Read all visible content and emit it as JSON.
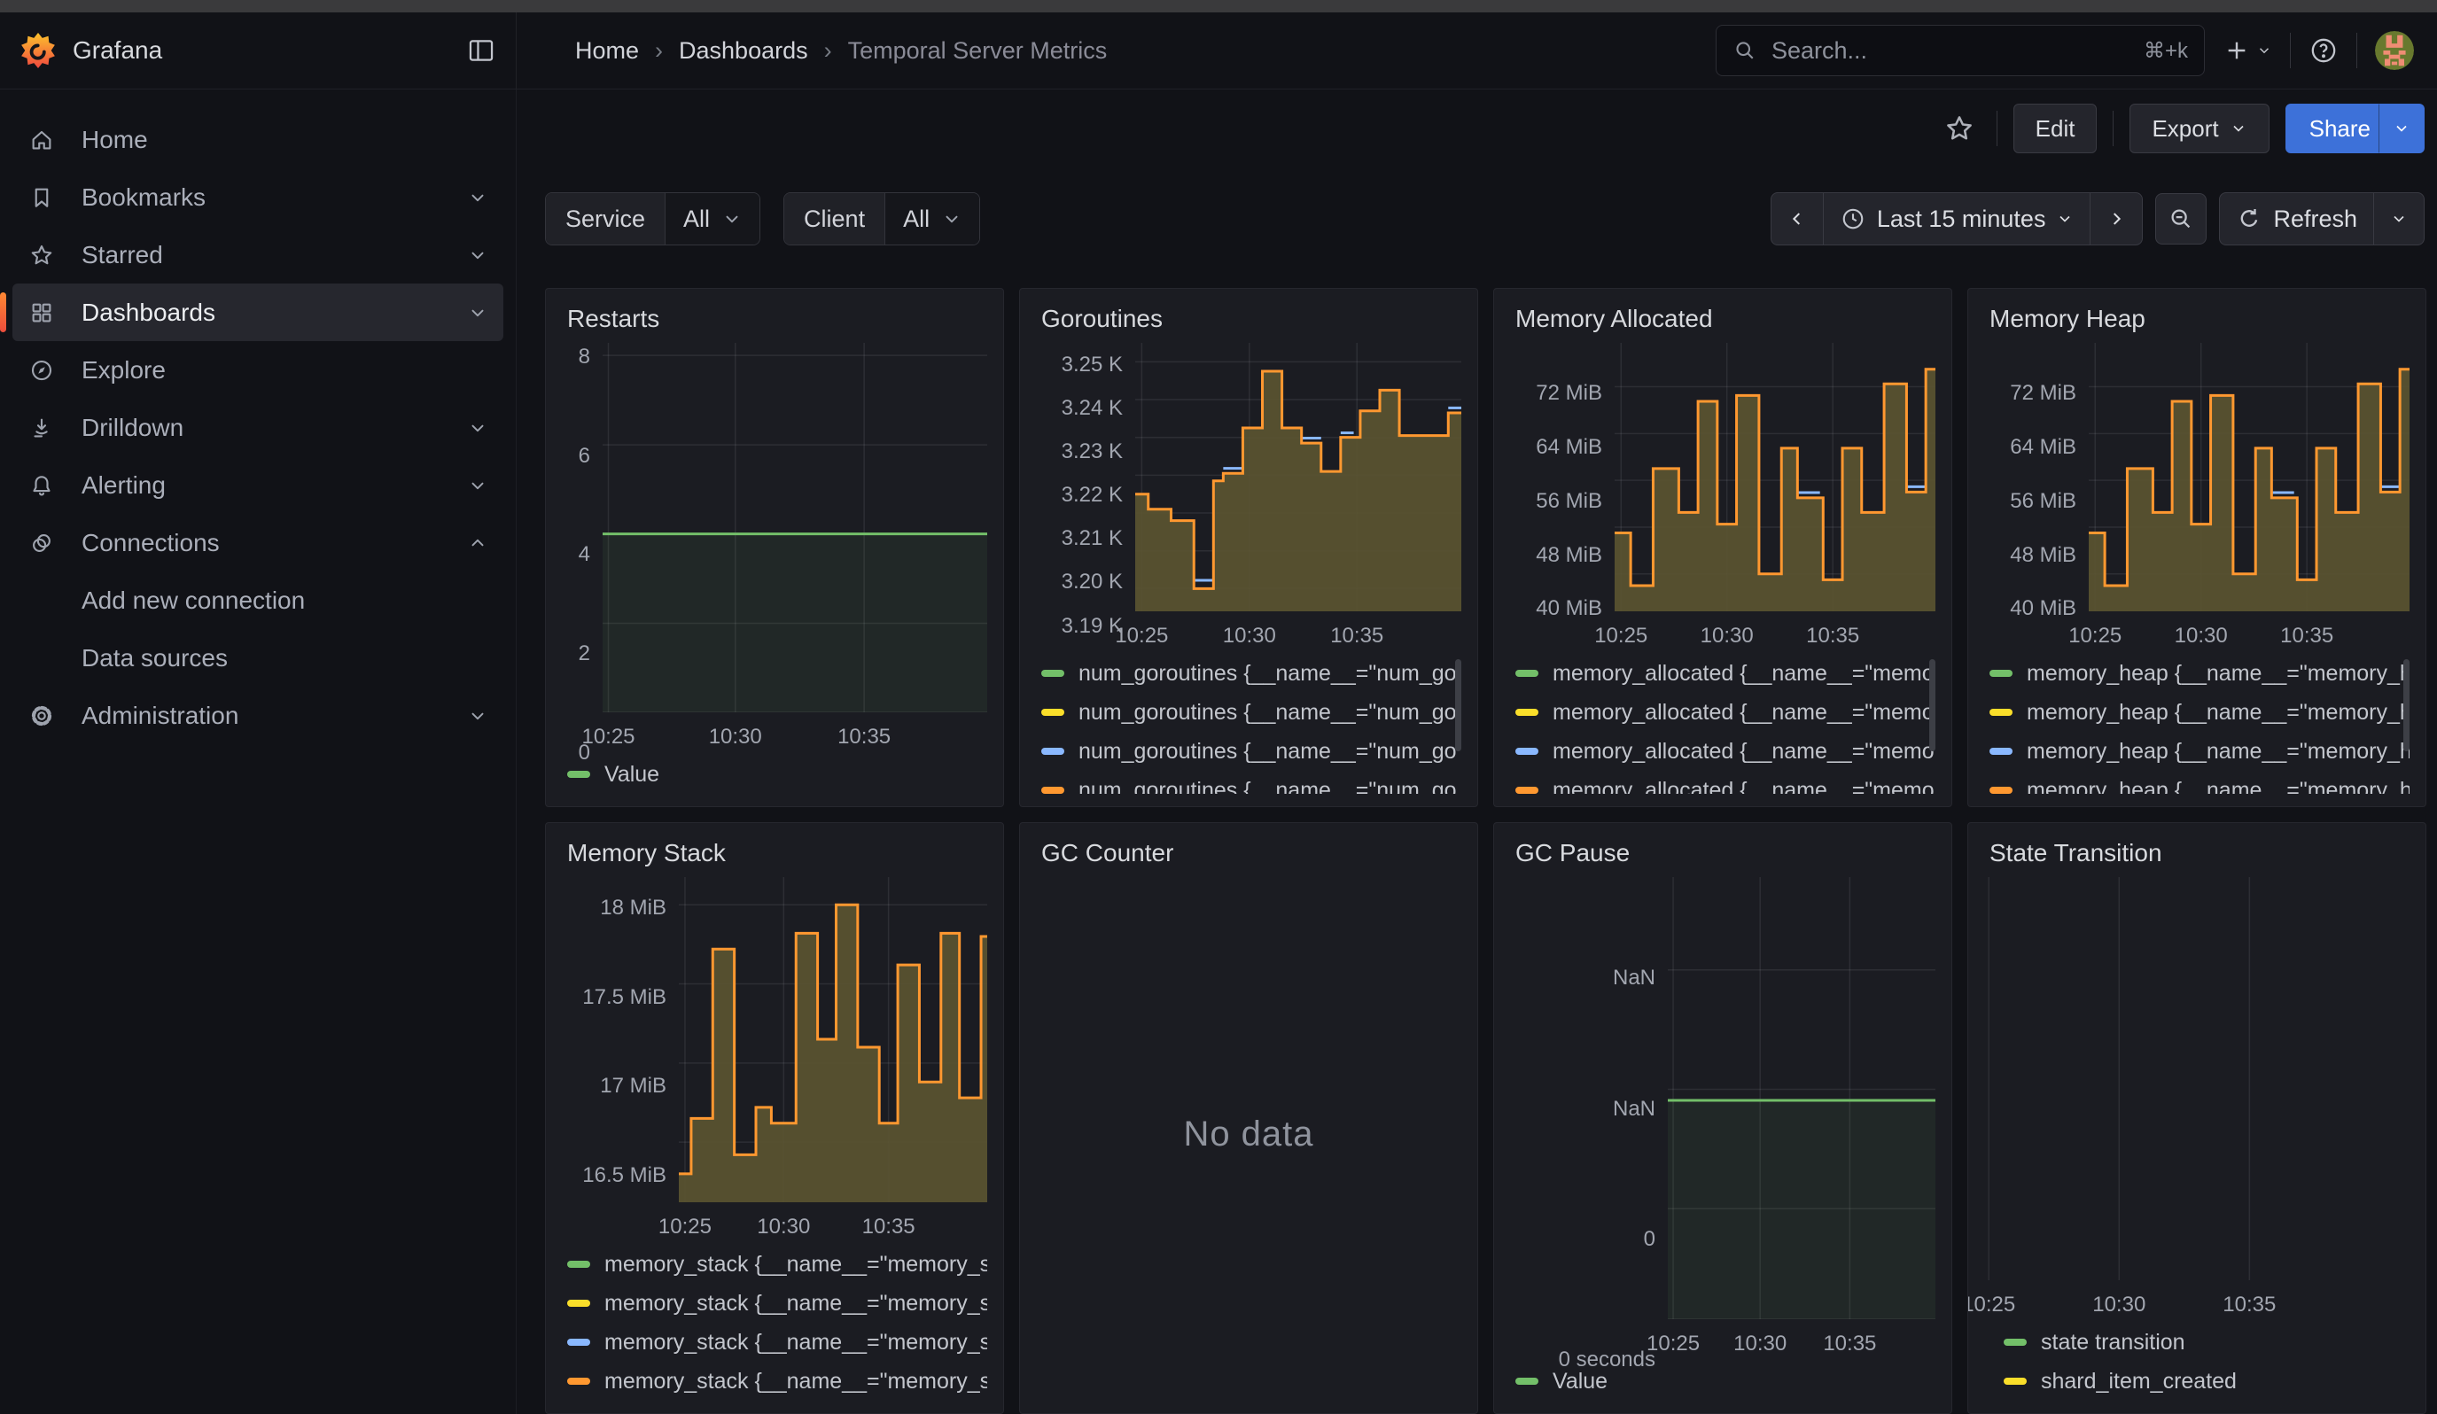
{
  "header": {
    "brand": "Grafana",
    "breadcrumb": [
      "Home",
      "Dashboards",
      "Temporal Server Metrics"
    ],
    "search": {
      "placeholder": "Search...",
      "shortcut": "⌘+k"
    }
  },
  "actions": {
    "edit": "Edit",
    "export": "Export",
    "share": "Share"
  },
  "sidebar": {
    "items": [
      {
        "label": "Home",
        "icon": "home",
        "chevron": null,
        "active": false,
        "indent": false
      },
      {
        "label": "Bookmarks",
        "icon": "bookmark",
        "chevron": "down",
        "active": false,
        "indent": false
      },
      {
        "label": "Starred",
        "icon": "star",
        "chevron": "down",
        "active": false,
        "indent": false
      },
      {
        "label": "Dashboards",
        "icon": "apps",
        "chevron": "down",
        "active": true,
        "indent": false
      },
      {
        "label": "Explore",
        "icon": "compass",
        "chevron": null,
        "active": false,
        "indent": false
      },
      {
        "label": "Drilldown",
        "icon": "drilldown",
        "chevron": "down",
        "active": false,
        "indent": false
      },
      {
        "label": "Alerting",
        "icon": "bell",
        "chevron": "down",
        "active": false,
        "indent": false
      },
      {
        "label": "Connections",
        "icon": "link",
        "chevron": "up",
        "active": false,
        "indent": false
      },
      {
        "label": "Add new connection",
        "icon": null,
        "chevron": null,
        "active": false,
        "indent": true
      },
      {
        "label": "Data sources",
        "icon": null,
        "chevron": null,
        "active": false,
        "indent": true
      },
      {
        "label": "Administration",
        "icon": "gear",
        "chevron": "down",
        "active": false,
        "indent": false
      }
    ]
  },
  "filters": [
    {
      "label": "Service",
      "value": "All"
    },
    {
      "label": "Client",
      "value": "All"
    }
  ],
  "timebar": {
    "range_label": "Last 15 minutes",
    "refresh_label": "Refresh"
  },
  "colors": {
    "green": "#73bf69",
    "yellow": "#fade2a",
    "blue": "#8ab8ff",
    "orange": "#ff9830",
    "area_fill": "#5a5431",
    "green_fill": "rgba(115,191,105,0.08)",
    "accent_blue": "#3d71d9",
    "brand_orange": "#ff8833"
  },
  "chart_data": [
    {
      "key": "restarts",
      "title": "Restarts",
      "type": "flat",
      "y_tick_labels": [
        "8",
        "6",
        "4",
        "2",
        "0"
      ],
      "y_tick_fracs": [
        3.4,
        27.6,
        51.7,
        75.9,
        100
      ],
      "x_ticks": [
        "10:25",
        "10:30",
        "10:35"
      ],
      "x_tick_fracs": [
        1.5,
        34.5,
        68
      ],
      "line_frac": 51.7,
      "value": 4,
      "ylim": [
        0,
        8.25
      ],
      "line_color": "#73bf69",
      "fill_color": "rgba(115,191,105,0.08)",
      "legend": [
        {
          "color": "#73bf69",
          "label": "Value"
        }
      ],
      "legend_clipped": false,
      "scrollbar": false,
      "yw": 46
    },
    {
      "key": "goroutines",
      "title": "Goroutines",
      "type": "steps",
      "y_tick_values": [
        3.25,
        3.24,
        3.23,
        3.22,
        3.21,
        3.2,
        3.19
      ],
      "y_tick_labels": [
        "3.25 K",
        "3.24 K",
        "3.23 K",
        "3.22 K",
        "3.21 K",
        "3.20 K",
        "3.19 K"
      ],
      "ylim": [
        3.184,
        3.255
      ],
      "unit": "K goroutines",
      "x_ticks": [
        "10:25",
        "10:30",
        "10:35"
      ],
      "x_tick_fracs": [
        2,
        35,
        68
      ],
      "steps": [
        [
          0,
          3.215
        ],
        [
          4,
          3.211
        ],
        [
          11,
          3.208
        ],
        [
          18,
          3.19
        ],
        [
          24,
          3.2185
        ],
        [
          27,
          3.2205
        ],
        [
          33,
          3.2325
        ],
        [
          39,
          3.2475
        ],
        [
          45,
          3.2325
        ],
        [
          51,
          3.2285
        ],
        [
          57,
          3.221
        ],
        [
          63,
          3.23
        ],
        [
          69,
          3.237
        ],
        [
          75,
          3.2425
        ],
        [
          81,
          3.2305
        ],
        [
          96,
          3.2365
        ]
      ],
      "blue_segments": [
        [
          18,
          24,
          3.1922
        ],
        [
          27,
          33,
          3.2218
        ],
        [
          51,
          57,
          3.2298
        ],
        [
          63,
          67,
          3.2312
        ],
        [
          96,
          100,
          3.2378
        ]
      ],
      "legend": [
        {
          "color": "#73bf69",
          "label": "num_goroutines {__name__=\"num_go"
        },
        {
          "color": "#fade2a",
          "label": "num_goroutines {__name__=\"num_go"
        },
        {
          "color": "#8ab8ff",
          "label": "num_goroutines {__name__=\"num_go"
        },
        {
          "color": "#ff9830",
          "label": "num_goroutines {__name__=\"num_go"
        }
      ],
      "legend_clipped": true,
      "scrollbar": true,
      "yw": 112
    },
    {
      "key": "memory_allocated",
      "title": "Memory Allocated",
      "type": "steps",
      "y_tick_values": [
        72,
        64,
        56,
        48,
        40
      ],
      "y_tick_labels": [
        "72 MiB",
        "64 MiB",
        "56 MiB",
        "48 MiB",
        "40 MiB"
      ],
      "ylim": [
        33.6,
        79.5
      ],
      "unit": "MiB",
      "x_ticks": [
        "10:25",
        "10:30",
        "10:35"
      ],
      "x_tick_fracs": [
        2,
        35,
        68
      ],
      "steps": [
        [
          0,
          47
        ],
        [
          5,
          38
        ],
        [
          12,
          58
        ],
        [
          20,
          50.5
        ],
        [
          26,
          69.5
        ],
        [
          32,
          48.5
        ],
        [
          38,
          70.5
        ],
        [
          45,
          40
        ],
        [
          52,
          61.5
        ],
        [
          57,
          53
        ],
        [
          65,
          39
        ],
        [
          71,
          61.5
        ],
        [
          77,
          50.5
        ],
        [
          84,
          72.5
        ],
        [
          91,
          54
        ],
        [
          97,
          75
        ]
      ],
      "blue_segments": [
        [
          57,
          64,
          53.9
        ],
        [
          91,
          97,
          54.9
        ]
      ],
      "legend": [
        {
          "color": "#73bf69",
          "label": "memory_allocated {__name__=\"memo"
        },
        {
          "color": "#fade2a",
          "label": "memory_allocated {__name__=\"memo"
        },
        {
          "color": "#8ab8ff",
          "label": "memory_allocated {__name__=\"memo"
        },
        {
          "color": "#ff9830",
          "label": "memory_allocated {__name__=\"memo"
        }
      ],
      "legend_clipped": true,
      "scrollbar": true,
      "yw": 118
    },
    {
      "key": "memory_heap",
      "title": "Memory Heap",
      "type": "steps",
      "y_tick_values": [
        72,
        64,
        56,
        48,
        40
      ],
      "y_tick_labels": [
        "72 MiB",
        "64 MiB",
        "56 MiB",
        "48 MiB",
        "40 MiB"
      ],
      "ylim": [
        33.6,
        79.5
      ],
      "unit": "MiB",
      "x_ticks": [
        "10:25",
        "10:30",
        "10:35"
      ],
      "x_tick_fracs": [
        2,
        35,
        68
      ],
      "steps": [
        [
          0,
          47
        ],
        [
          5,
          38
        ],
        [
          12,
          58
        ],
        [
          20,
          50.5
        ],
        [
          26,
          69.5
        ],
        [
          32,
          48.5
        ],
        [
          38,
          70.5
        ],
        [
          45,
          40
        ],
        [
          52,
          61.5
        ],
        [
          57,
          53
        ],
        [
          65,
          39
        ],
        [
          71,
          61.5
        ],
        [
          77,
          50.5
        ],
        [
          84,
          72.5
        ],
        [
          91,
          54
        ],
        [
          97,
          75
        ]
      ],
      "blue_segments": [
        [
          57,
          64,
          53.9
        ],
        [
          91,
          97,
          54.9
        ]
      ],
      "legend": [
        {
          "color": "#73bf69",
          "label": "memory_heap {__name__=\"memory_h"
        },
        {
          "color": "#fade2a",
          "label": "memory_heap {__name__=\"memory_h"
        },
        {
          "color": "#8ab8ff",
          "label": "memory_heap {__name__=\"memory_h"
        },
        {
          "color": "#ff9830",
          "label": "memory_heap {__name__=\"memory_h"
        }
      ],
      "legend_clipped": true,
      "scrollbar": true,
      "yw": 118
    },
    {
      "key": "memory_stack",
      "title": "Memory Stack",
      "type": "steps",
      "y_tick_values": [
        18,
        17.5,
        17,
        16.5
      ],
      "y_tick_labels": [
        "18 MiB",
        "17.5 MiB",
        "17 MiB",
        "16.5 MiB"
      ],
      "ylim": [
        16.12,
        18.175
      ],
      "unit": "MiB",
      "x_ticks": [
        "10:25",
        "10:30",
        "10:35"
      ],
      "x_tick_fracs": [
        2,
        34,
        68
      ],
      "steps": [
        [
          0,
          16.3
        ],
        [
          4,
          16.65
        ],
        [
          11,
          17.72
        ],
        [
          18,
          16.42
        ],
        [
          25,
          16.72
        ],
        [
          30,
          16.62
        ],
        [
          38,
          17.82
        ],
        [
          45,
          17.15
        ],
        [
          51,
          18.0
        ],
        [
          58,
          17.1
        ],
        [
          65,
          16.62
        ],
        [
          71,
          17.62
        ],
        [
          78,
          16.88
        ],
        [
          85,
          17.82
        ],
        [
          91,
          16.78
        ],
        [
          98,
          17.8
        ]
      ],
      "blue_segments": [],
      "legend": [
        {
          "color": "#73bf69",
          "label": "memory_stack {__name__=\"memory_s"
        },
        {
          "color": "#fade2a",
          "label": "memory_stack {__name__=\"memory_s"
        },
        {
          "color": "#8ab8ff",
          "label": "memory_stack {__name__=\"memory_s"
        },
        {
          "color": "#ff9830",
          "label": "memory_stack {__name__=\"memory_s"
        }
      ],
      "legend_clipped": false,
      "scrollbar": false,
      "yw": 132
    },
    {
      "key": "gc_counter",
      "title": "GC Counter",
      "type": "nodata",
      "message": "No data"
    },
    {
      "key": "gc_pause",
      "title": "GC Pause",
      "type": "flat",
      "y_tick_labels": [
        "NaN",
        "NaN",
        "0",
        "0 seconds"
      ],
      "y_tick_fracs": [
        21,
        48,
        75,
        100
      ],
      "x_ticks": [
        "10:25",
        "10:30",
        "10:35"
      ],
      "x_tick_fracs": [
        2,
        34.5,
        68
      ],
      "line_frac": 50.5,
      "value": 0,
      "ylim": null,
      "line_color": "#73bf69",
      "fill_color": "rgba(115,191,105,0.08)",
      "legend": [
        {
          "color": "#73bf69",
          "label": "Value"
        }
      ],
      "legend_clipped": false,
      "scrollbar": false,
      "yw": 178
    },
    {
      "key": "state_transition",
      "title": "State Transition",
      "type": "empty",
      "y_tick_labels": [],
      "y_tick_fracs": [],
      "x_ticks": [
        "10:25",
        "10:30",
        "10:35"
      ],
      "x_tick_fracs": [
        4.5,
        33,
        61.5
      ],
      "legend": [
        {
          "color": "#73bf69",
          "label": "state transition"
        },
        {
          "color": "#fade2a",
          "label": "shard_item_created"
        }
      ],
      "legend_clipped": false,
      "scrollbar": false,
      "yw": 0
    }
  ]
}
